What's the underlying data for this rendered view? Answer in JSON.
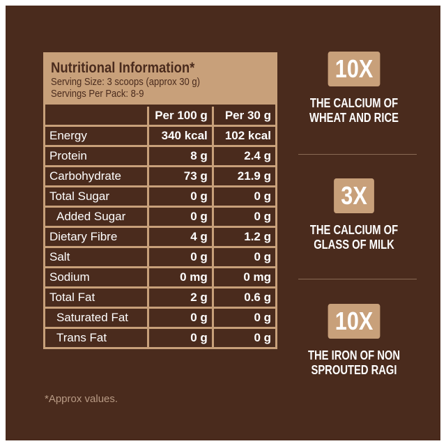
{
  "header": {
    "title": "Nutritional Information*",
    "serving_size": "Serving Size: 3 scoops (approx 30 g)",
    "servings_per_pack": "Servings Per Pack: 8-9"
  },
  "table": {
    "columns": [
      "Per 100 g",
      "Per 30 g"
    ],
    "rows": [
      [
        "Energy",
        "340 kcal",
        "102 kcal"
      ],
      [
        "Protein",
        "8 g",
        "2.4 g"
      ],
      [
        "Carbohydrate",
        "73 g",
        "21.9 g"
      ],
      [
        "Total Sugar",
        "0 g",
        "0 g"
      ],
      [
        "Added Sugar",
        "0 g",
        "0 g"
      ],
      [
        "Dietary Fibre",
        "4 g",
        "1.2 g"
      ],
      [
        "Salt",
        "0 g",
        "0 g"
      ],
      [
        "Sodium",
        "0 mg",
        "0 mg"
      ],
      [
        "Total Fat",
        "2 g",
        "0.6 g"
      ],
      [
        "Saturated Fat",
        "0 g",
        "0 g"
      ],
      [
        "Trans Fat",
        "0 g",
        "0 g"
      ]
    ]
  },
  "footnote": "*Approx values.",
  "highlights": [
    {
      "value": "10X",
      "lines": [
        "THE CALCIUM OF",
        "WHEAT AND RICE"
      ]
    },
    {
      "value": "3X",
      "lines": [
        "THE CALCIUM OF",
        "GLASS OF MILK"
      ]
    },
    {
      "value": "10X",
      "lines": [
        "THE IRON OF NON",
        "SPROUTED RAGI"
      ]
    }
  ]
}
